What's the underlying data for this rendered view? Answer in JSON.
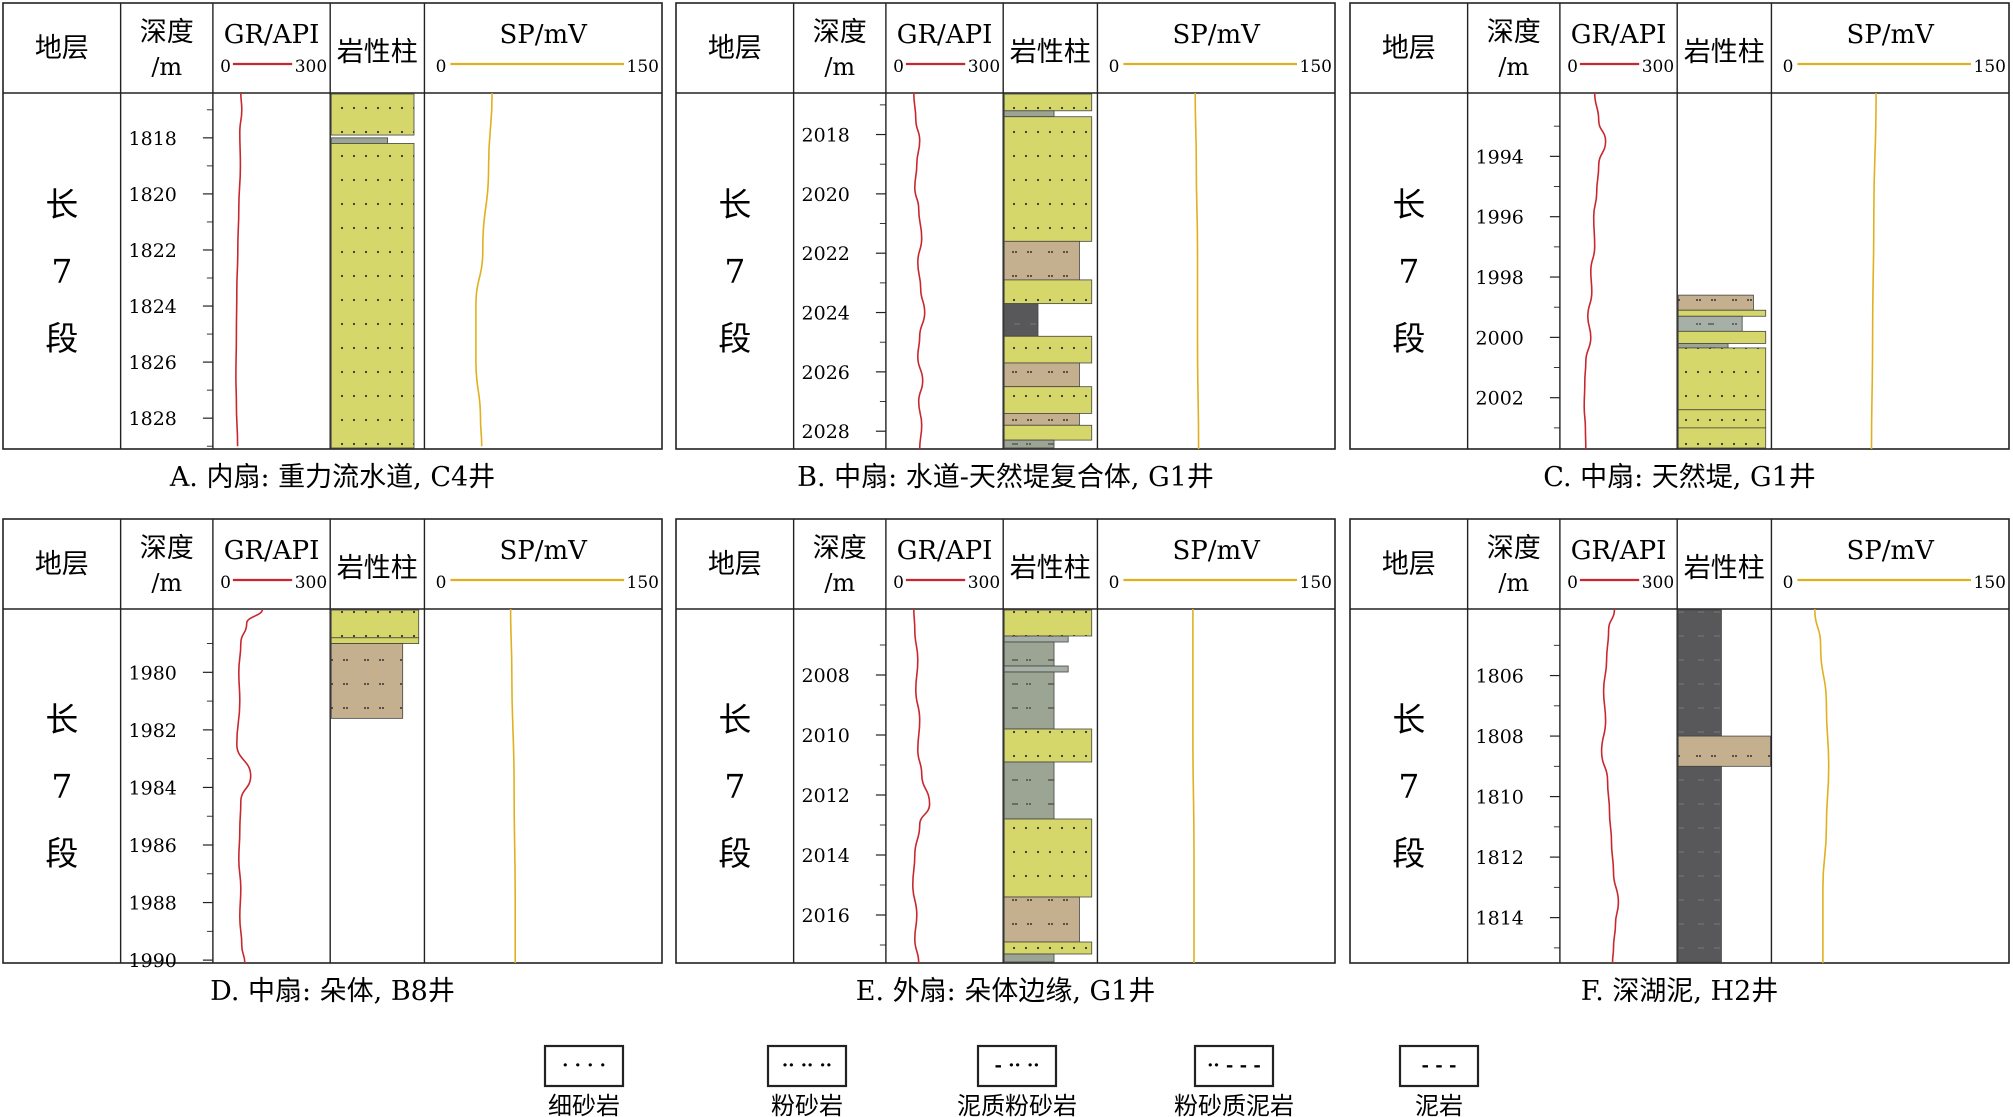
{
  "header_labels": {
    "strata": "地层",
    "depth_top": "深度",
    "depth_bottom": "/m",
    "gr_title": "GR/API",
    "gr_min": "0",
    "gr_max": "300",
    "lith_title": "岩性柱",
    "sp_title": "SP/mV",
    "sp_min": "0",
    "sp_max": "150"
  },
  "strata_label": [
    "长",
    "7",
    "段"
  ],
  "colors": {
    "gr_curve": "#c8282d",
    "sp_curve": "#e0b020",
    "fine_sand": "#d6d76a",
    "siltstone": "#c4b08e",
    "muddy_silt": "#9ca594",
    "silty_mud": "#a7b0a6",
    "mudstone": "#58585a",
    "border": "#222222"
  },
  "legend": [
    {
      "key": "fine_sand",
      "label": "细砂岩",
      "symbol": "· · · ·"
    },
    {
      "key": "siltstone",
      "label": "粉砂岩",
      "symbol": "·· ·· ··"
    },
    {
      "key": "muddy_silt",
      "label": "泥质粉砂岩",
      "symbol": "- ·· ··"
    },
    {
      "key": "silty_mud",
      "label": "粉砂质泥岩",
      "symbol": "·· - - -"
    },
    {
      "key": "mudstone",
      "label": "泥岩",
      "symbol": "- - -"
    }
  ],
  "panels": [
    {
      "id": "A",
      "caption": "A. 内扇: 重力流水道, C4井",
      "depth_range": [
        1816.4,
        1829.1
      ],
      "depth_ticks": [
        1818,
        1820,
        1822,
        1824,
        1826,
        1828
      ],
      "lith": [
        {
          "top": 1816.4,
          "bottom": 1817.9,
          "type": "fine_sand",
          "width": 0.9
        },
        {
          "top": 1818.0,
          "bottom": 1818.2,
          "type": "muddy_silt",
          "width": 0.62
        },
        {
          "top": 1818.2,
          "bottom": 1829.1,
          "type": "fine_sand",
          "width": 0.9
        }
      ],
      "gr": [
        [
          1816.4,
          40
        ],
        [
          1817.0,
          45
        ],
        [
          1817.8,
          35
        ],
        [
          1819.0,
          38
        ],
        [
          1820.5,
          30
        ],
        [
          1822.0,
          25
        ],
        [
          1823.5,
          20
        ],
        [
          1825.0,
          18
        ],
        [
          1826.5,
          15
        ],
        [
          1827.5,
          18
        ],
        [
          1829.0,
          24
        ]
      ],
      "sp": [
        [
          1816.4,
          36
        ],
        [
          1819.0,
          33
        ],
        [
          1822.0,
          28
        ],
        [
          1824.0,
          22
        ],
        [
          1826.0,
          22
        ],
        [
          1828.0,
          26
        ],
        [
          1829.0,
          27
        ]
      ]
    },
    {
      "id": "B",
      "caption": "B. 中扇: 水道-天然堤复合体, G1井",
      "depth_range": [
        2016.6,
        2028.6
      ],
      "depth_ticks": [
        2018,
        2020,
        2022,
        2024,
        2026,
        2028
      ],
      "lith": [
        {
          "top": 2016.6,
          "bottom": 2017.2,
          "type": "fine_sand",
          "width": 0.95
        },
        {
          "top": 2017.2,
          "bottom": 2017.4,
          "type": "muddy_silt",
          "width": 0.55
        },
        {
          "top": 2017.4,
          "bottom": 2021.6,
          "type": "fine_sand",
          "width": 0.95
        },
        {
          "top": 2021.6,
          "bottom": 2022.9,
          "type": "siltstone",
          "width": 0.82
        },
        {
          "top": 2022.9,
          "bottom": 2023.7,
          "type": "fine_sand",
          "width": 0.95
        },
        {
          "top": 2023.7,
          "bottom": 2024.8,
          "type": "mudstone",
          "width": 0.38
        },
        {
          "top": 2024.8,
          "bottom": 2025.7,
          "type": "fine_sand",
          "width": 0.95
        },
        {
          "top": 2025.7,
          "bottom": 2026.5,
          "type": "siltstone",
          "width": 0.82
        },
        {
          "top": 2026.5,
          "bottom": 2027.4,
          "type": "fine_sand",
          "width": 0.95
        },
        {
          "top": 2027.4,
          "bottom": 2027.8,
          "type": "siltstone",
          "width": 0.82
        },
        {
          "top": 2027.8,
          "bottom": 2028.3,
          "type": "fine_sand",
          "width": 0.95
        },
        {
          "top": 2028.3,
          "bottom": 2028.6,
          "type": "muddy_silt",
          "width": 0.55
        }
      ],
      "gr": [
        [
          2016.6,
          40
        ],
        [
          2017.5,
          50
        ],
        [
          2018.2,
          70
        ],
        [
          2019.0,
          55
        ],
        [
          2019.8,
          45
        ],
        [
          2020.5,
          65
        ],
        [
          2021.5,
          80
        ],
        [
          2022.3,
          60
        ],
        [
          2023.2,
          75
        ],
        [
          2024.0,
          95
        ],
        [
          2024.8,
          70
        ],
        [
          2025.5,
          60
        ],
        [
          2026.3,
          85
        ],
        [
          2027.0,
          65
        ],
        [
          2027.8,
          80
        ],
        [
          2028.6,
          70
        ]
      ],
      "sp": [
        [
          2016.6,
          62
        ],
        [
          2019.0,
          63
        ],
        [
          2022.0,
          64
        ],
        [
          2025.0,
          64
        ],
        [
          2028.6,
          65
        ]
      ]
    },
    {
      "id": "C",
      "caption": "C. 中扇: 天然堤, G1井",
      "depth_range": [
        1991.9,
        2003.7
      ],
      "depth_ticks": [
        1994,
        1996,
        1998,
        2000,
        2002
      ],
      "lith": [
        {
          "top": 1998.6,
          "bottom": 1999.1,
          "type": "siltstone",
          "width": 0.82
        },
        {
          "top": 1999.1,
          "bottom": 1999.3,
          "type": "fine_sand",
          "width": 0.95
        },
        {
          "top": 1999.3,
          "bottom": 1999.8,
          "type": "silty_mud",
          "width": 0.7
        },
        {
          "top": 1999.8,
          "bottom": 2000.2,
          "type": "fine_sand",
          "width": 0.95
        },
        {
          "top": 2000.2,
          "bottom": 2000.35,
          "type": "muddy_silt",
          "width": 0.55
        },
        {
          "top": 2000.35,
          "bottom": 2002.4,
          "type": "fine_sand",
          "width": 0.95
        },
        {
          "top": 2002.4,
          "bottom": 2003.0,
          "type": "fine_sand",
          "width": 0.95
        },
        {
          "top": 2003.0,
          "bottom": 2003.7,
          "type": "fine_sand",
          "width": 0.95
        }
      ],
      "gr": [
        [
          1991.9,
          75
        ],
        [
          1992.8,
          95
        ],
        [
          1993.5,
          130
        ],
        [
          1994.3,
          95
        ],
        [
          1995.2,
          85
        ],
        [
          1996.0,
          70
        ],
        [
          1997.0,
          75
        ],
        [
          1997.8,
          55
        ],
        [
          1998.5,
          60
        ],
        [
          1999.3,
          40
        ],
        [
          2000.0,
          55
        ],
        [
          2000.8,
          30
        ],
        [
          2001.5,
          25
        ],
        [
          2002.3,
          22
        ],
        [
          2003.0,
          28
        ],
        [
          2003.7,
          30
        ]
      ],
      "sp": [
        [
          1991.9,
          68
        ],
        [
          1996.0,
          66
        ],
        [
          2000.0,
          65
        ],
        [
          2003.7,
          64
        ]
      ]
    },
    {
      "id": "D",
      "caption": "D. 中扇: 朵体, B8井",
      "depth_range": [
        1977.8,
        1990.1
      ],
      "depth_ticks": [
        1980,
        1982,
        1984,
        1986,
        1988,
        1990
      ],
      "lith": [
        {
          "top": 1977.8,
          "bottom": 1978.8,
          "type": "fine_sand",
          "width": 0.95
        },
        {
          "top": 1978.8,
          "bottom": 1979.0,
          "type": "fine_sand",
          "width": 0.95
        },
        {
          "top": 1979.0,
          "bottom": 1981.6,
          "type": "siltstone",
          "width": 0.78
        }
      ],
      "gr": [
        [
          1977.8,
          150
        ],
        [
          1978.3,
          70
        ],
        [
          1979.0,
          40
        ],
        [
          1980.0,
          30
        ],
        [
          1981.0,
          35
        ],
        [
          1982.5,
          20
        ],
        [
          1983.6,
          90
        ],
        [
          1984.5,
          40
        ],
        [
          1985.5,
          35
        ],
        [
          1986.5,
          30
        ],
        [
          1987.5,
          40
        ],
        [
          1988.5,
          35
        ],
        [
          1989.5,
          45
        ],
        [
          1990.1,
          60
        ]
      ],
      "sp": [
        [
          1977.8,
          52
        ],
        [
          1980.0,
          53
        ],
        [
          1984.0,
          55
        ],
        [
          1988.0,
          56
        ],
        [
          1990.1,
          56
        ]
      ]
    },
    {
      "id": "E",
      "caption": "E. 外扇: 朵体边缘, G1井",
      "depth_range": [
        2005.8,
        2017.6
      ],
      "depth_ticks": [
        2008,
        2010,
        2012,
        2014,
        2016
      ],
      "lith": [
        {
          "top": 2005.8,
          "bottom": 2006.7,
          "type": "fine_sand",
          "width": 0.95
        },
        {
          "top": 2006.7,
          "bottom": 2006.9,
          "type": "silty_mud",
          "width": 0.7
        },
        {
          "top": 2006.9,
          "bottom": 2007.7,
          "type": "muddy_silt",
          "width": 0.55
        },
        {
          "top": 2007.7,
          "bottom": 2007.9,
          "type": "silty_mud",
          "width": 0.7
        },
        {
          "top": 2007.9,
          "bottom": 2009.8,
          "type": "muddy_silt",
          "width": 0.55
        },
        {
          "top": 2009.8,
          "bottom": 2010.9,
          "type": "fine_sand",
          "width": 0.95
        },
        {
          "top": 2010.9,
          "bottom": 2012.8,
          "type": "muddy_silt",
          "width": 0.55
        },
        {
          "top": 2012.8,
          "bottom": 2015.4,
          "type": "fine_sand",
          "width": 0.95
        },
        {
          "top": 2015.4,
          "bottom": 2016.9,
          "type": "siltstone",
          "width": 0.82
        },
        {
          "top": 2016.9,
          "bottom": 2017.3,
          "type": "fine_sand",
          "width": 0.95
        },
        {
          "top": 2017.3,
          "bottom": 2017.6,
          "type": "muddy_silt",
          "width": 0.55
        }
      ],
      "gr": [
        [
          2005.8,
          40
        ],
        [
          2006.5,
          45
        ],
        [
          2007.5,
          60
        ],
        [
          2008.5,
          50
        ],
        [
          2009.5,
          70
        ],
        [
          2010.5,
          60
        ],
        [
          2011.3,
          80
        ],
        [
          2012.3,
          120
        ],
        [
          2013.0,
          70
        ],
        [
          2014.0,
          45
        ],
        [
          2015.0,
          35
        ],
        [
          2016.0,
          55
        ],
        [
          2016.8,
          45
        ],
        [
          2017.6,
          65
        ]
      ],
      "sp": [
        [
          2005.8,
          60
        ],
        [
          2010.0,
          60
        ],
        [
          2014.0,
          61
        ],
        [
          2017.6,
          61
        ]
      ]
    },
    {
      "id": "F",
      "caption": "F. 深湖泥, H2井",
      "depth_range": [
        1803.8,
        1815.5
      ],
      "depth_ticks": [
        1806,
        1808,
        1810,
        1812,
        1814
      ],
      "lith": [
        {
          "top": 1803.8,
          "bottom": 1808.0,
          "type": "mudstone",
          "width": 0.48
        },
        {
          "top": 1808.0,
          "bottom": 1809.0,
          "type": "siltstone",
          "width": 1.0
        },
        {
          "top": 1809.0,
          "bottom": 1815.5,
          "type": "mudstone",
          "width": 0.48
        }
      ],
      "gr": [
        [
          1803.8,
          175
        ],
        [
          1804.5,
          145
        ],
        [
          1805.5,
          135
        ],
        [
          1806.5,
          120
        ],
        [
          1807.5,
          130
        ],
        [
          1808.5,
          110
        ],
        [
          1809.5,
          140
        ],
        [
          1810.5,
          150
        ],
        [
          1811.5,
          160
        ],
        [
          1812.5,
          170
        ],
        [
          1813.5,
          195
        ],
        [
          1814.2,
          180
        ],
        [
          1815.0,
          170
        ],
        [
          1815.5,
          165
        ]
      ],
      "sp": [
        [
          1803.8,
          15
        ],
        [
          1805.0,
          20
        ],
        [
          1807.0,
          25
        ],
        [
          1809.0,
          27
        ],
        [
          1811.0,
          25
        ],
        [
          1813.0,
          22
        ],
        [
          1815.5,
          22
        ]
      ]
    }
  ]
}
